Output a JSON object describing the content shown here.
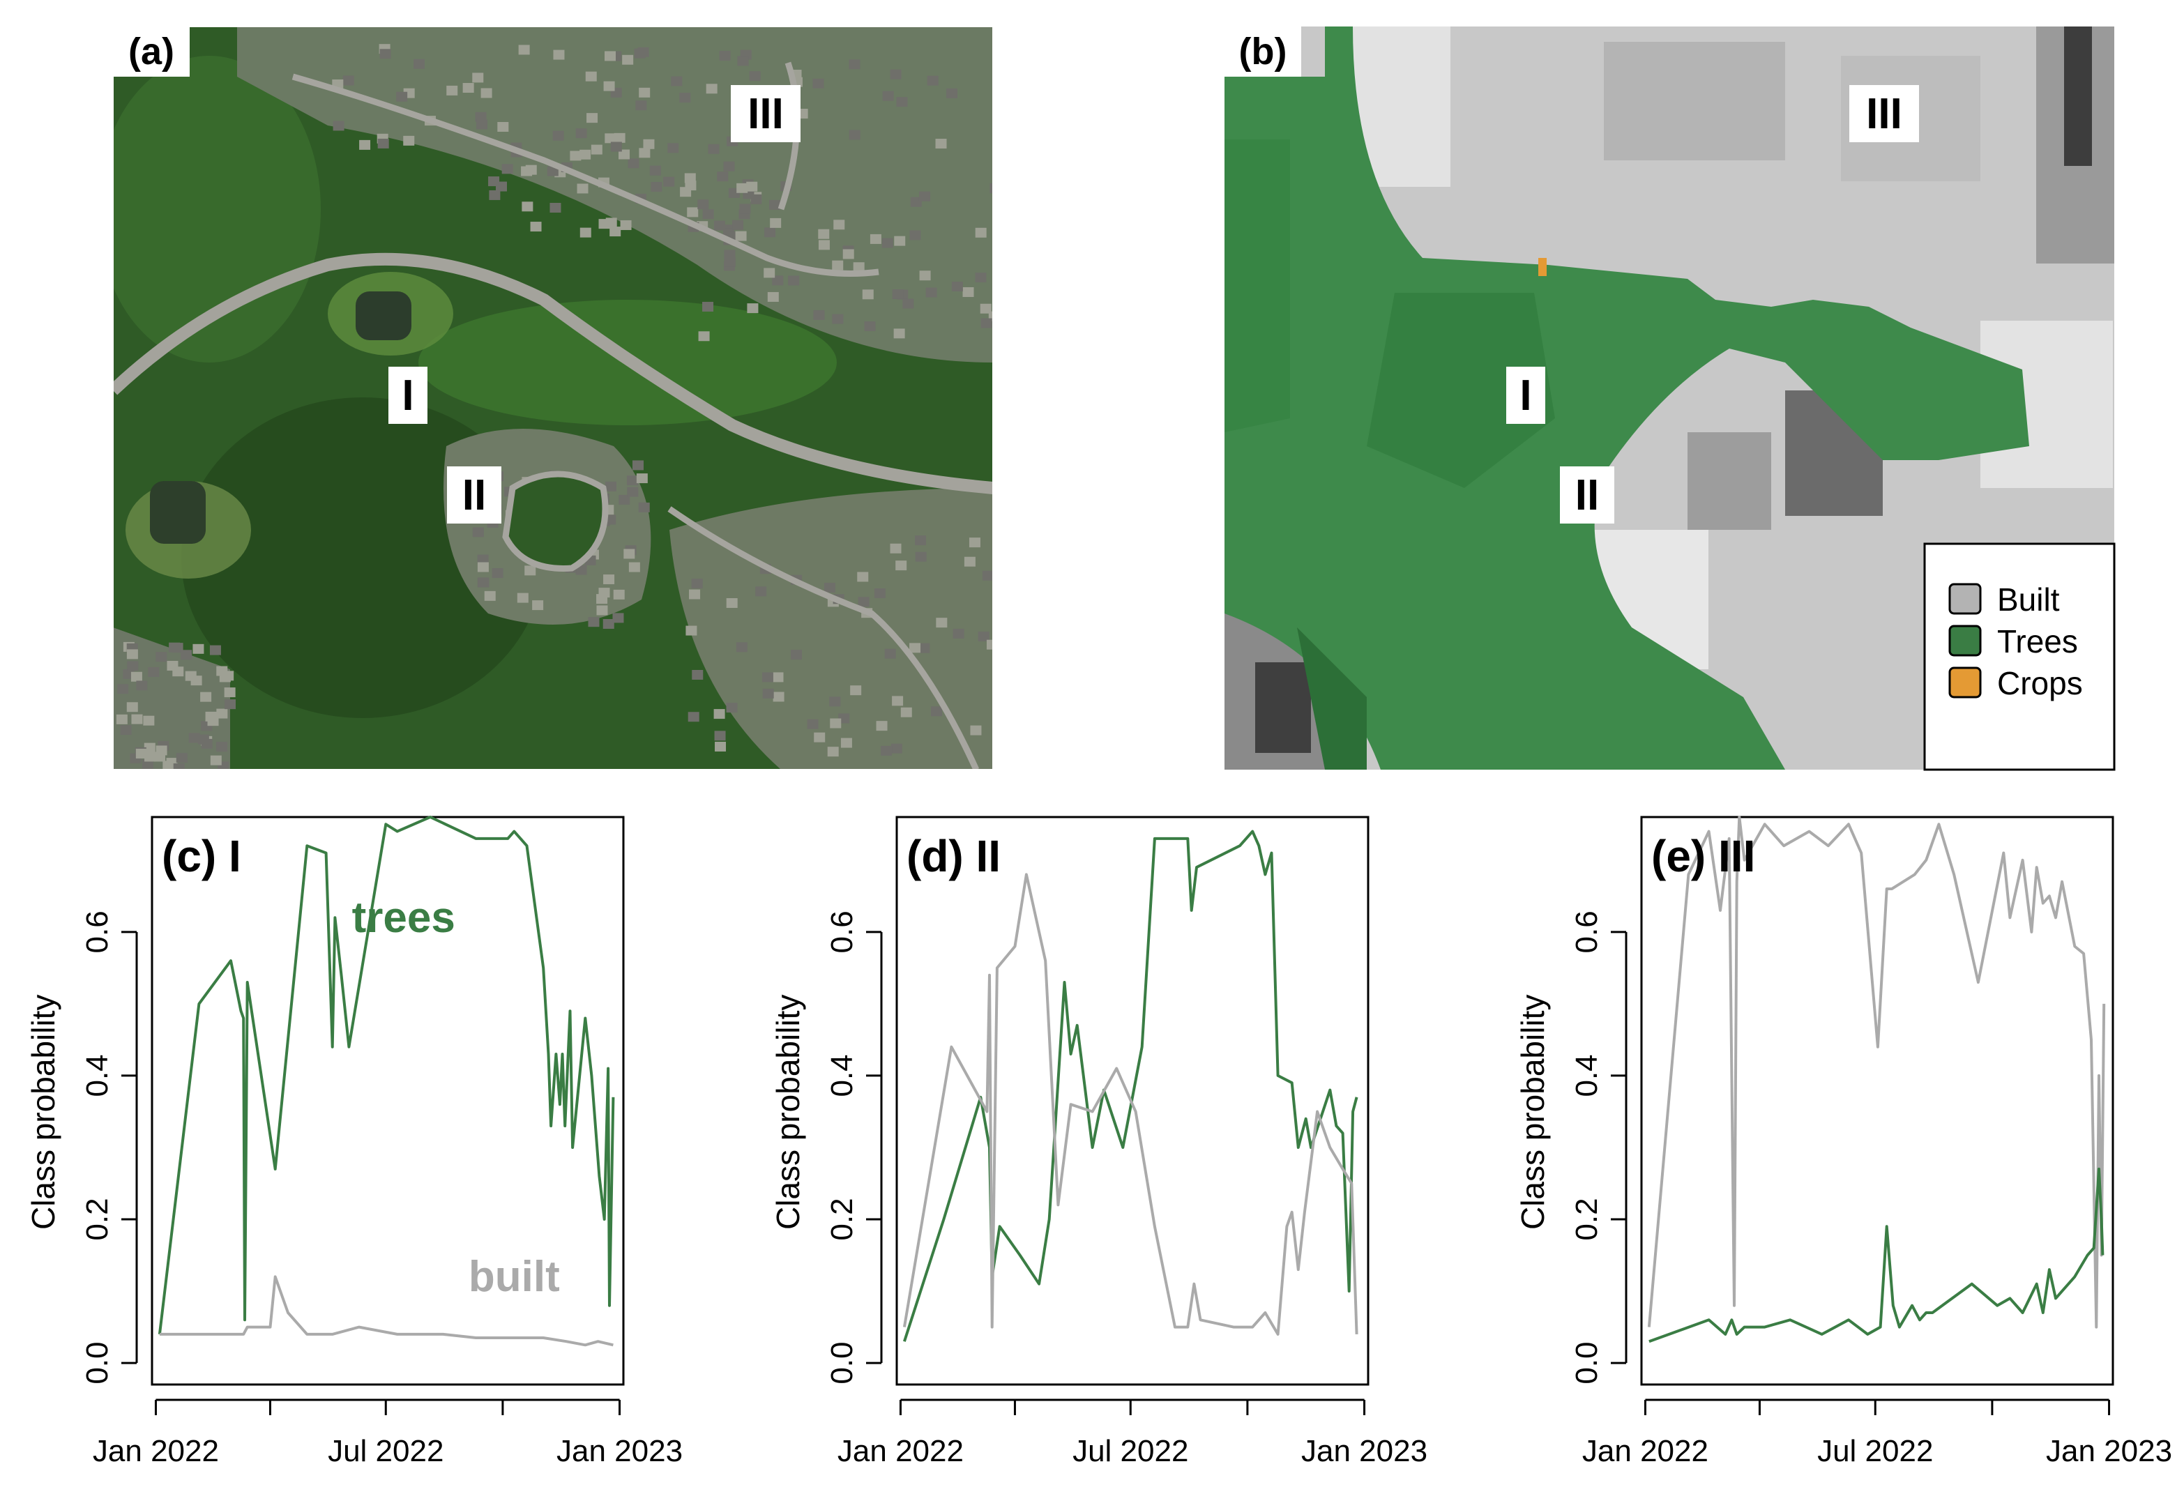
{
  "panels": {
    "a": {
      "tag": "(a)",
      "markers": [
        "III",
        "I",
        "II"
      ]
    },
    "b": {
      "tag": "(b)",
      "markers": [
        "III",
        "I",
        "II"
      ]
    }
  },
  "legend": {
    "items": [
      {
        "label": "Built",
        "color": "#b3b3b3"
      },
      {
        "label": "Trees",
        "color": "#3a7d44"
      },
      {
        "label": "Crops",
        "color": "#e49a34"
      }
    ]
  },
  "colors": {
    "trees": "#3a7d44",
    "built": "#aaaaaa"
  },
  "chart_data": [
    {
      "type": "line",
      "title": "(c) I",
      "ylabel": "Class probability",
      "xlim": [
        "2022-01-01",
        "2023-01-01"
      ],
      "ylim": [
        0,
        0.75
      ],
      "xticks": [
        "Jan 2022",
        "Jul 2022",
        "Jan 2023"
      ],
      "yticks": [
        "0.0",
        "0.2",
        "0.4",
        "0.6"
      ],
      "annotations": [
        {
          "text": "trees",
          "color": "#3a7d44",
          "x": "2022-07-15",
          "y": 0.6
        },
        {
          "text": "built",
          "color": "#aaaaaa",
          "x": "2022-10-10",
          "y": 0.1
        }
      ],
      "series": [
        {
          "name": "trees",
          "color": "#3a7d44",
          "x": [
            "2022-01-04",
            "2022-02-04",
            "2022-03-01",
            "2022-03-09",
            "2022-03-11",
            "2022-03-12",
            "2022-03-14",
            "2022-04-05",
            "2022-04-30",
            "2022-05-15",
            "2022-05-20",
            "2022-05-22",
            "2022-05-27",
            "2022-06-02",
            "2022-07-01",
            "2022-07-10",
            "2022-08-05",
            "2022-09-10",
            "2022-10-05",
            "2022-10-10",
            "2022-10-20",
            "2022-11-02",
            "2022-11-06",
            "2022-11-08",
            "2022-11-12",
            "2022-11-15",
            "2022-11-17",
            "2022-11-19",
            "2022-11-23",
            "2022-11-25",
            "2022-12-05",
            "2022-12-10",
            "2022-12-16",
            "2022-12-20",
            "2022-12-23",
            "2022-12-24",
            "2022-12-27"
          ],
          "y": [
            0.04,
            0.5,
            0.56,
            0.49,
            0.48,
            0.06,
            0.53,
            0.27,
            0.72,
            0.71,
            0.44,
            0.62,
            0.54,
            0.44,
            0.75,
            0.74,
            0.76,
            0.73,
            0.73,
            0.74,
            0.72,
            0.55,
            0.43,
            0.33,
            0.43,
            0.36,
            0.43,
            0.33,
            0.49,
            0.3,
            0.48,
            0.4,
            0.26,
            0.2,
            0.41,
            0.08,
            0.37
          ]
        },
        {
          "name": "built",
          "color": "#aaaaaa",
          "x": [
            "2022-01-04",
            "2022-03-01",
            "2022-03-11",
            "2022-03-14",
            "2022-04-01",
            "2022-04-05",
            "2022-04-15",
            "2022-04-30",
            "2022-05-20",
            "2022-06-10",
            "2022-07-10",
            "2022-08-15",
            "2022-09-10",
            "2022-10-10",
            "2022-11-02",
            "2022-11-20",
            "2022-12-05",
            "2022-12-15",
            "2022-12-27"
          ],
          "y": [
            0.04,
            0.04,
            0.04,
            0.05,
            0.05,
            0.12,
            0.07,
            0.04,
            0.04,
            0.05,
            0.04,
            0.04,
            0.035,
            0.035,
            0.035,
            0.03,
            0.025,
            0.03,
            0.025
          ]
        }
      ]
    },
    {
      "type": "line",
      "title": "(d) II",
      "ylabel": "Class probability",
      "xlim": [
        "2022-01-01",
        "2023-01-01"
      ],
      "ylim": [
        0,
        0.75
      ],
      "xticks": [
        "Jan 2022",
        "Jul 2022",
        "Jan 2023"
      ],
      "yticks": [
        "0.0",
        "0.2",
        "0.4",
        "0.6"
      ],
      "series": [
        {
          "name": "trees",
          "color": "#3a7d44",
          "x": [
            "2022-01-04",
            "2022-02-04",
            "2022-03-05",
            "2022-03-12",
            "2022-03-14",
            "2022-03-20",
            "2022-04-05",
            "2022-04-20",
            "2022-04-28",
            "2022-05-10",
            "2022-05-15",
            "2022-05-20",
            "2022-06-01",
            "2022-06-10",
            "2022-06-25",
            "2022-07-10",
            "2022-07-20",
            "2022-08-15",
            "2022-08-18",
            "2022-08-22",
            "2022-09-25",
            "2022-10-05",
            "2022-10-10",
            "2022-10-15",
            "2022-10-20",
            "2022-10-25",
            "2022-11-05",
            "2022-11-10",
            "2022-11-16",
            "2022-11-20",
            "2022-12-05",
            "2022-12-10",
            "2022-12-15",
            "2022-12-20",
            "2022-12-23",
            "2022-12-26"
          ],
          "y": [
            0.03,
            0.2,
            0.37,
            0.3,
            0.12,
            0.19,
            0.15,
            0.11,
            0.2,
            0.53,
            0.43,
            0.47,
            0.3,
            0.38,
            0.3,
            0.44,
            0.73,
            0.73,
            0.63,
            0.69,
            0.72,
            0.74,
            0.72,
            0.68,
            0.71,
            0.4,
            0.39,
            0.3,
            0.34,
            0.3,
            0.38,
            0.33,
            0.32,
            0.1,
            0.35,
            0.37
          ]
        },
        {
          "name": "built",
          "color": "#aaaaaa",
          "x": [
            "2022-01-04",
            "2022-02-10",
            "2022-03-10",
            "2022-03-12",
            "2022-03-14",
            "2022-03-18",
            "2022-04-01",
            "2022-04-10",
            "2022-04-25",
            "2022-05-05",
            "2022-05-15",
            "2022-06-01",
            "2022-06-20",
            "2022-07-05",
            "2022-07-20",
            "2022-08-05",
            "2022-08-15",
            "2022-08-20",
            "2022-08-25",
            "2022-09-20",
            "2022-10-05",
            "2022-10-15",
            "2022-10-25",
            "2022-11-01",
            "2022-11-05",
            "2022-11-10",
            "2022-11-15",
            "2022-11-25",
            "2022-12-05",
            "2022-12-15",
            "2022-12-22",
            "2022-12-26"
          ],
          "y": [
            0.05,
            0.44,
            0.35,
            0.54,
            0.05,
            0.55,
            0.58,
            0.68,
            0.56,
            0.22,
            0.36,
            0.35,
            0.41,
            0.35,
            0.19,
            0.05,
            0.05,
            0.11,
            0.06,
            0.05,
            0.05,
            0.07,
            0.04,
            0.19,
            0.21,
            0.13,
            0.21,
            0.35,
            0.3,
            0.27,
            0.25,
            0.04
          ]
        }
      ]
    },
    {
      "type": "line",
      "title": "(e) III",
      "ylabel": "Class probability",
      "xlim": [
        "2022-01-01",
        "2023-01-01"
      ],
      "ylim": [
        0,
        0.75
      ],
      "xticks": [
        "Jan 2022",
        "Jul 2022",
        "Jan 2023"
      ],
      "yticks": [
        "0.0",
        "0.2",
        "0.4",
        "0.6"
      ],
      "series": [
        {
          "name": "built",
          "color": "#aaaaaa",
          "x": [
            "2022-01-04",
            "2022-02-04",
            "2022-02-20",
            "2022-03-01",
            "2022-03-08",
            "2022-03-12",
            "2022-03-14",
            "2022-03-16",
            "2022-03-20",
            "2022-04-05",
            "2022-04-20",
            "2022-05-10",
            "2022-05-25",
            "2022-06-10",
            "2022-06-20",
            "2022-07-03",
            "2022-07-10",
            "2022-07-14",
            "2022-08-01",
            "2022-08-10",
            "2022-08-20",
            "2022-09-01",
            "2022-09-20",
            "2022-10-10",
            "2022-10-15",
            "2022-10-25",
            "2022-11-01",
            "2022-11-05",
            "2022-11-10",
            "2022-11-15",
            "2022-11-20",
            "2022-11-25",
            "2022-12-05",
            "2022-12-12",
            "2022-12-18",
            "2022-12-22",
            "2022-12-24",
            "2022-12-26",
            "2022-12-28"
          ],
          "y": [
            0.05,
            0.68,
            0.74,
            0.63,
            0.73,
            0.08,
            0.67,
            0.76,
            0.7,
            0.75,
            0.72,
            0.74,
            0.72,
            0.75,
            0.71,
            0.44,
            0.66,
            0.66,
            0.68,
            0.7,
            0.75,
            0.68,
            0.53,
            0.71,
            0.62,
            0.7,
            0.6,
            0.69,
            0.64,
            0.65,
            0.62,
            0.67,
            0.58,
            0.57,
            0.45,
            0.05,
            0.4,
            0.15,
            0.5
          ]
        },
        {
          "name": "trees",
          "color": "#3a7d44",
          "x": [
            "2022-01-04",
            "2022-02-20",
            "2022-03-05",
            "2022-03-10",
            "2022-03-14",
            "2022-03-20",
            "2022-04-05",
            "2022-04-25",
            "2022-05-20",
            "2022-06-10",
            "2022-06-25",
            "2022-07-05",
            "2022-07-10",
            "2022-07-15",
            "2022-07-20",
            "2022-07-30",
            "2022-08-05",
            "2022-08-10",
            "2022-08-15",
            "2022-09-15",
            "2022-10-05",
            "2022-10-15",
            "2022-10-25",
            "2022-11-05",
            "2022-11-10",
            "2022-11-15",
            "2022-11-20",
            "2022-11-25",
            "2022-12-05",
            "2022-12-15",
            "2022-12-20",
            "2022-12-24",
            "2022-12-26",
            "2022-12-27"
          ],
          "y": [
            0.03,
            0.06,
            0.04,
            0.06,
            0.04,
            0.05,
            0.05,
            0.06,
            0.04,
            0.06,
            0.04,
            0.05,
            0.19,
            0.08,
            0.05,
            0.08,
            0.06,
            0.07,
            0.07,
            0.11,
            0.08,
            0.09,
            0.07,
            0.11,
            0.07,
            0.13,
            0.09,
            0.1,
            0.12,
            0.15,
            0.16,
            0.27,
            0.2,
            0.15
          ]
        }
      ]
    }
  ]
}
